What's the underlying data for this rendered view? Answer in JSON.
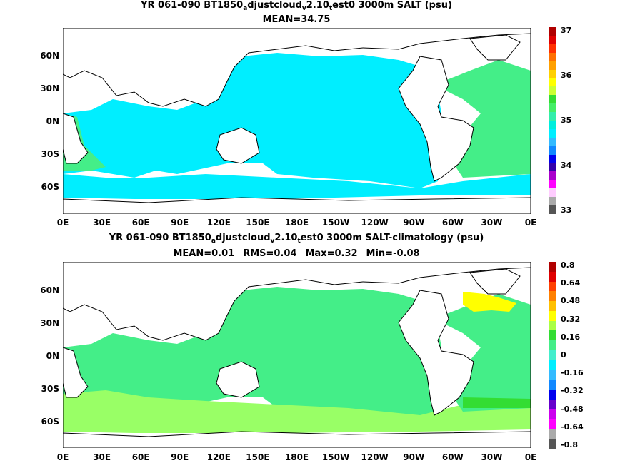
{
  "panels": [
    {
      "title_main": "YR 061-090 BT1850",
      "title_sub1": "a",
      "title_mid": "djustcloud",
      "title_sub2": "v",
      "title_mid2": "2.10",
      "title_sub3": "t",
      "title_end": "est0 3000m SALT (psu)",
      "stats": [
        "MEAN=34.75"
      ],
      "colorbar_labels": [
        "37",
        "36",
        "35",
        "34",
        "33"
      ],
      "colorbar_colors": [
        "#b00000",
        "#e00000",
        "#ff3000",
        "#ff7000",
        "#ffa000",
        "#ffd000",
        "#ffff00",
        "#ccff33",
        "#33dd33",
        "#44ee66",
        "#33eeaa",
        "#00eedd",
        "#00eeff",
        "#33bbff",
        "#1188ff",
        "#0000ee",
        "#3300aa",
        "#aa00cc",
        "#ff00ff",
        "#ffccff",
        "#aaaaaa",
        "#555555"
      ],
      "fill_main": "#00eeff",
      "fill_atlantic": "#44ee88"
    },
    {
      "title_main": "YR 061-090 BT1850",
      "title_sub1": "a",
      "title_mid": "djustcloud",
      "title_sub2": "v",
      "title_mid2": "2.10",
      "title_sub3": "t",
      "title_end": "est0 3000m SALT-climatology (psu)",
      "stats": [
        "MEAN=0.01",
        "RMS=0.04",
        "Max=0.32",
        "Min=-0.08"
      ],
      "colorbar_labels": [
        "0.8",
        "0.64",
        "0.48",
        "0.32",
        "0.16",
        "0",
        "-0.16",
        "-0.32",
        "-0.48",
        "-0.64",
        "-0.8"
      ],
      "colorbar_colors": [
        "#b00000",
        "#e00000",
        "#ff4000",
        "#ff8000",
        "#ffc000",
        "#ffff00",
        "#aaff44",
        "#33dd33",
        "#44ee88",
        "#44eecc",
        "#00eeff",
        "#33bbff",
        "#1188ff",
        "#0000ee",
        "#6600cc",
        "#cc00ee",
        "#ff00ff",
        "#aaaaaa",
        "#555555"
      ],
      "fill_main": "#44ee88",
      "fill_light": "#99ff66",
      "fill_yellow": "#ffff00"
    }
  ],
  "axes": {
    "yticks": [
      "60N",
      "30N",
      "0N",
      "30S",
      "60S"
    ],
    "xticks": [
      "0E",
      "30E",
      "60E",
      "90E",
      "120E",
      "150E",
      "180E",
      "150W",
      "120W",
      "90W",
      "60W",
      "30W",
      "0E"
    ]
  }
}
